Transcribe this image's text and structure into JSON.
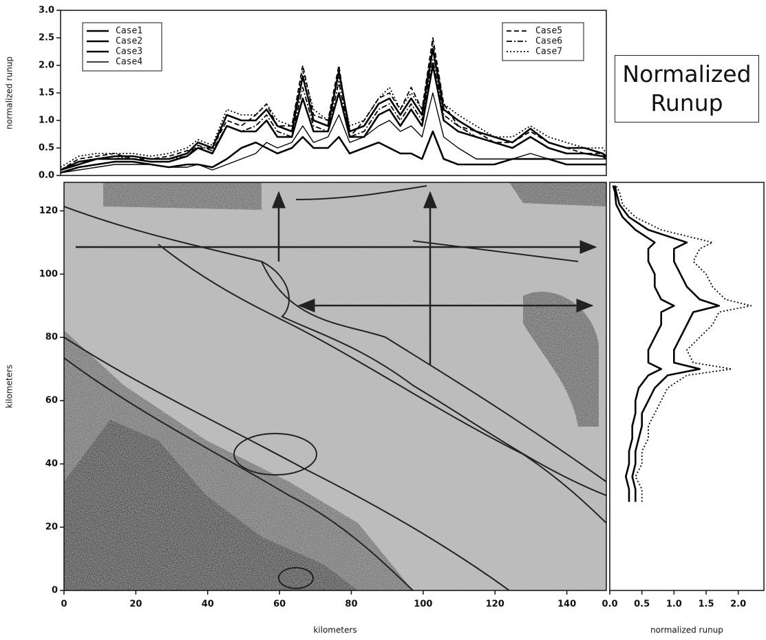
{
  "chart_data": [
    {
      "type": "line",
      "ylabel": "normalized runup",
      "xlim": [
        0,
        151
      ],
      "ylim": [
        0,
        3.0
      ],
      "yticks": [
        {
          "value": 0,
          "label": "0.0"
        },
        {
          "value": 0.5,
          "label": "0.5"
        },
        {
          "value": 1,
          "label": "1.0"
        },
        {
          "value": 1.5,
          "label": "1.5"
        },
        {
          "value": 2,
          "label": "2.0"
        },
        {
          "value": 2.5,
          "label": "2.5"
        },
        {
          "value": 3,
          "label": "3.0"
        }
      ],
      "x": [
        0,
        5,
        10,
        15,
        20,
        25,
        30,
        35,
        38,
        42,
        46,
        50,
        54,
        57,
        60,
        64,
        67,
        70,
        74,
        77,
        80,
        84,
        88,
        91,
        94,
        97,
        100,
        103,
        106,
        110,
        115,
        120,
        125,
        130,
        135,
        140,
        145,
        150,
        151
      ],
      "series": [
        {
          "name": "Case1",
          "color": "#000000",
          "line_style": "solid",
          "values": [
            0.1,
            0.25,
            0.3,
            0.35,
            0.35,
            0.3,
            0.3,
            0.4,
            0.6,
            0.5,
            1.1,
            1.0,
            1.0,
            1.2,
            0.9,
            0.8,
            1.8,
            1.0,
            0.9,
            1.9,
            0.8,
            0.9,
            1.3,
            1.4,
            1.1,
            1.4,
            1.1,
            2.3,
            1.2,
            1.0,
            0.8,
            0.7,
            0.6,
            0.85,
            0.6,
            0.5,
            0.5,
            0.4,
            0.35
          ]
        },
        {
          "name": "Case2",
          "color": "#000000",
          "line_style": "solid",
          "values": [
            0.1,
            0.2,
            0.3,
            0.3,
            0.3,
            0.25,
            0.25,
            0.35,
            0.5,
            0.4,
            0.9,
            0.8,
            0.8,
            1.0,
            0.7,
            0.7,
            1.4,
            0.8,
            0.8,
            1.5,
            0.7,
            0.7,
            1.1,
            1.2,
            0.9,
            1.2,
            0.9,
            2.0,
            1.0,
            0.8,
            0.7,
            0.6,
            0.5,
            0.7,
            0.5,
            0.4,
            0.4,
            0.35,
            0.3
          ]
        },
        {
          "name": "Case3",
          "color": "#000000",
          "line_style": "solid",
          "values": [
            0.05,
            0.15,
            0.2,
            0.25,
            0.25,
            0.2,
            0.15,
            0.2,
            0.2,
            0.15,
            0.3,
            0.5,
            0.6,
            0.5,
            0.4,
            0.5,
            0.7,
            0.5,
            0.5,
            0.7,
            0.4,
            0.5,
            0.6,
            0.5,
            0.4,
            0.4,
            0.3,
            0.8,
            0.3,
            0.2,
            0.2,
            0.2,
            0.3,
            0.3,
            0.3,
            0.2,
            0.2,
            0.2,
            0.2
          ]
        },
        {
          "name": "Case4",
          "color": "#000000",
          "line_style": "thin",
          "values": [
            0.05,
            0.1,
            0.15,
            0.2,
            0.2,
            0.2,
            0.15,
            0.15,
            0.2,
            0.1,
            0.2,
            0.3,
            0.4,
            0.6,
            0.5,
            0.6,
            0.9,
            0.6,
            0.7,
            1.1,
            0.6,
            0.7,
            0.9,
            1.0,
            0.8,
            0.9,
            0.7,
            1.5,
            0.7,
            0.5,
            0.3,
            0.3,
            0.3,
            0.4,
            0.3,
            0.3,
            0.3,
            0.3,
            0.3
          ]
        },
        {
          "name": "Case5",
          "color": "#000000",
          "line_style": "dashed",
          "values": [
            0.1,
            0.3,
            0.35,
            0.4,
            0.3,
            0.3,
            0.35,
            0.45,
            0.5,
            0.5,
            1.0,
            0.9,
            1.1,
            1.3,
            0.9,
            0.9,
            2.0,
            1.1,
            1.0,
            2.0,
            0.7,
            1.0,
            1.4,
            1.5,
            1.2,
            1.6,
            1.2,
            2.5,
            1.3,
            0.9,
            0.8,
            0.6,
            0.6,
            0.8,
            0.6,
            0.5,
            0.4,
            0.4,
            0.3
          ]
        },
        {
          "name": "Case6",
          "color": "#000000",
          "line_style": "dashdot",
          "values": [
            0.1,
            0.2,
            0.3,
            0.3,
            0.35,
            0.3,
            0.3,
            0.35,
            0.55,
            0.45,
            0.9,
            0.8,
            0.9,
            1.1,
            0.8,
            0.7,
            1.6,
            0.9,
            0.8,
            1.7,
            0.7,
            0.8,
            1.2,
            1.3,
            1.0,
            1.3,
            1.0,
            2.1,
            1.1,
            0.9,
            0.7,
            0.6,
            0.5,
            0.7,
            0.5,
            0.4,
            0.4,
            0.35,
            0.3
          ]
        },
        {
          "name": "Case7",
          "color": "#000000",
          "line_style": "dotted",
          "values": [
            0.15,
            0.35,
            0.4,
            0.4,
            0.4,
            0.35,
            0.4,
            0.5,
            0.65,
            0.55,
            1.2,
            1.1,
            1.1,
            1.3,
            1.0,
            0.9,
            1.9,
            1.2,
            1.0,
            1.8,
            0.9,
            1.0,
            1.4,
            1.6,
            1.2,
            1.5,
            1.2,
            2.4,
            1.3,
            1.1,
            0.9,
            0.7,
            0.7,
            0.9,
            0.7,
            0.6,
            0.5,
            0.5,
            0.4
          ]
        }
      ]
    },
    {
      "type": "image",
      "xlabel": "kilometers",
      "ylabel": "kilometers",
      "xlim": [
        0,
        151
      ],
      "ylim": [
        0,
        129
      ],
      "xticks": [
        0,
        20,
        40,
        60,
        80,
        100,
        120,
        140
      ],
      "yticks": [
        0,
        20,
        40,
        60,
        80,
        100,
        120
      ]
    },
    {
      "type": "profile",
      "xlabel": "normalized runup",
      "xlim": [
        0,
        2.4
      ],
      "ylim": [
        0,
        129
      ],
      "xticks": [
        {
          "value": 0,
          "label": "0.0"
        },
        {
          "value": 0.5,
          "label": "0.5"
        },
        {
          "value": 1,
          "label": "1.0"
        },
        {
          "value": 1.5,
          "label": "1.5"
        },
        {
          "value": 2,
          "label": "2.0"
        }
      ],
      "y": [
        28,
        32,
        36,
        40,
        44,
        48,
        52,
        56,
        60,
        64,
        68,
        70,
        72,
        76,
        80,
        84,
        88,
        90,
        92,
        96,
        100,
        104,
        108,
        110,
        114,
        118,
        122,
        126,
        128
      ],
      "series": [
        {
          "color": "#000000",
          "line_style": "dotted",
          "values": [
            0.5,
            0.5,
            0.4,
            0.5,
            0.5,
            0.6,
            0.6,
            0.7,
            0.8,
            0.9,
            1.2,
            1.9,
            1.3,
            1.2,
            1.4,
            1.6,
            1.7,
            2.2,
            1.8,
            1.6,
            1.5,
            1.3,
            1.4,
            1.6,
            0.8,
            0.4,
            0.2,
            0.15,
            0.1
          ]
        },
        {
          "color": "#000000",
          "line_style": "solid",
          "values": [
            0.4,
            0.4,
            0.35,
            0.4,
            0.4,
            0.45,
            0.5,
            0.5,
            0.6,
            0.7,
            0.9,
            1.4,
            1.0,
            1.0,
            1.1,
            1.2,
            1.3,
            1.7,
            1.4,
            1.2,
            1.1,
            1.0,
            1.0,
            1.2,
            0.6,
            0.3,
            0.15,
            0.1,
            0.08
          ]
        },
        {
          "color": "#000000",
          "line_style": "solid",
          "values": [
            0.3,
            0.3,
            0.25,
            0.3,
            0.3,
            0.35,
            0.35,
            0.4,
            0.4,
            0.45,
            0.6,
            0.8,
            0.6,
            0.6,
            0.7,
            0.8,
            0.8,
            1.0,
            0.8,
            0.7,
            0.7,
            0.6,
            0.6,
            0.7,
            0.4,
            0.2,
            0.1,
            0.08,
            0.05
          ]
        }
      ]
    }
  ],
  "annotation": "Normalized Runup"
}
